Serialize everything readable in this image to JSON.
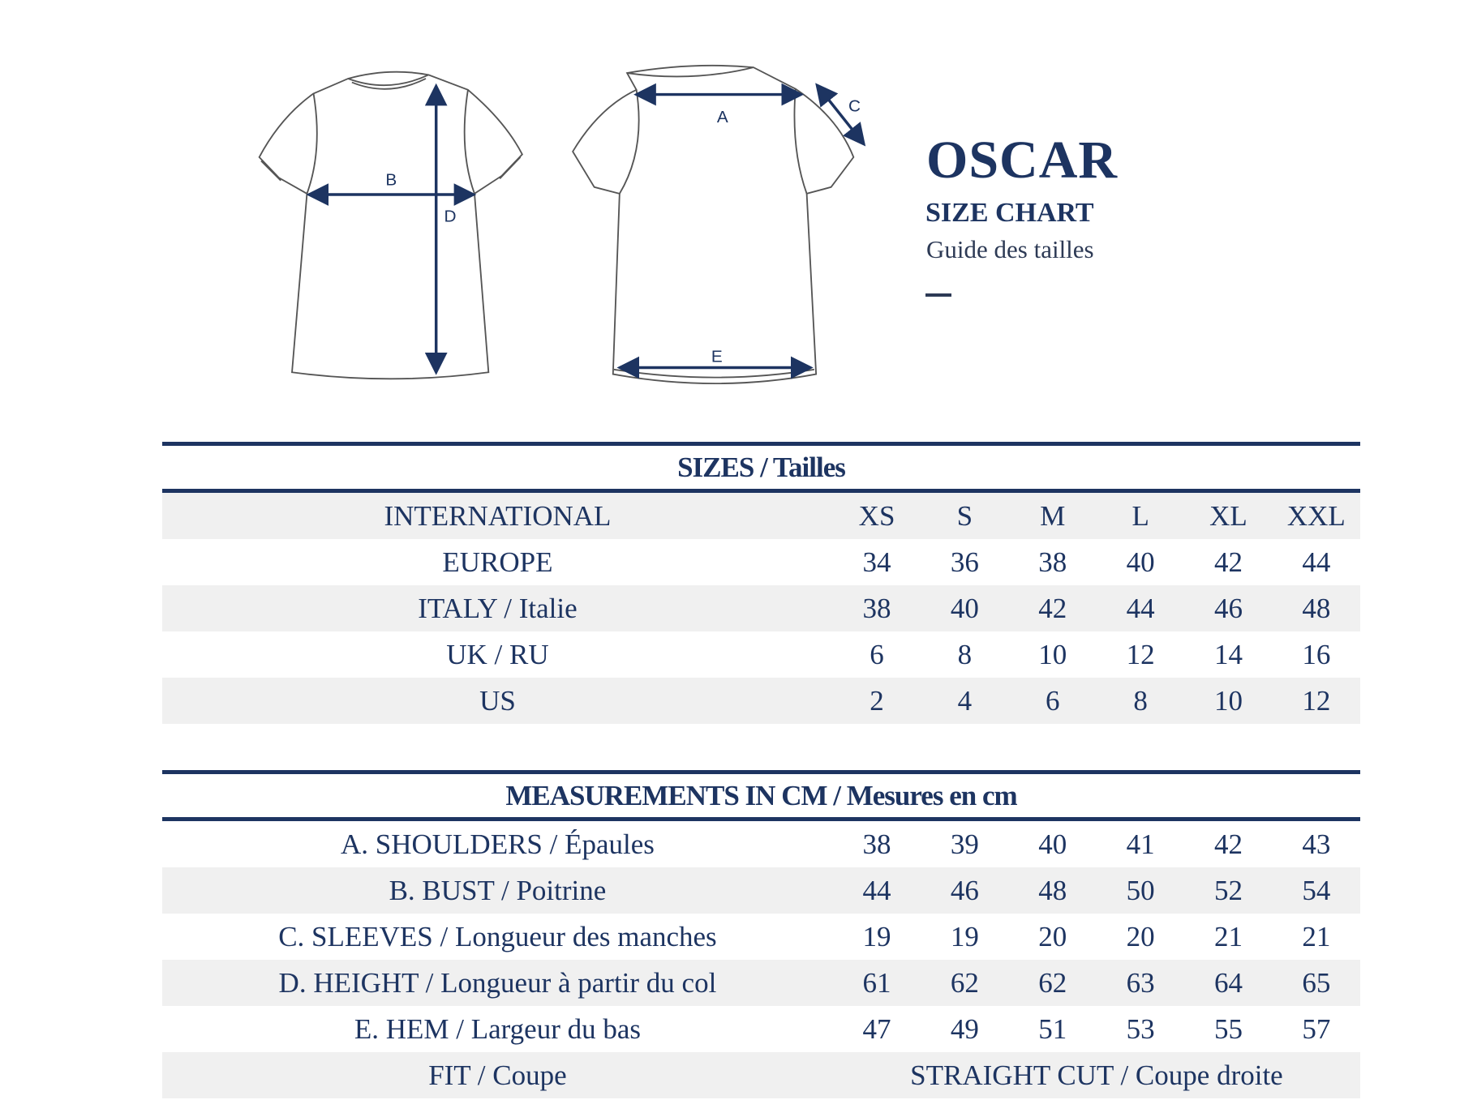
{
  "brand": {
    "name": "OSCAR",
    "subtitle": "SIZE CHART",
    "subtitle_fr": "Guide des tailles"
  },
  "diagram_labels": {
    "a": "A",
    "b": "B",
    "c": "C",
    "d": "D",
    "e": "E"
  },
  "sizes": {
    "title": "SIZES / Tailles",
    "rows": [
      {
        "label": "INTERNATIONAL",
        "values": [
          "XS",
          "S",
          "M",
          "L",
          "XL",
          "XXL"
        ]
      },
      {
        "label": "EUROPE",
        "values": [
          "34",
          "36",
          "38",
          "40",
          "42",
          "44"
        ]
      },
      {
        "label": "ITALY / Italie",
        "values": [
          "38",
          "40",
          "42",
          "44",
          "46",
          "48"
        ]
      },
      {
        "label": "UK / RU",
        "values": [
          "6",
          "8",
          "10",
          "12",
          "14",
          "16"
        ]
      },
      {
        "label": "US",
        "values": [
          "2",
          "4",
          "6",
          "8",
          "10",
          "12"
        ]
      }
    ]
  },
  "measurements": {
    "title": "MEASUREMENTS IN CM / Mesures en cm",
    "rows": [
      {
        "label": "A. SHOULDERS / Épaules",
        "values": [
          "38",
          "39",
          "40",
          "41",
          "42",
          "43"
        ]
      },
      {
        "label": "B. BUST / Poitrine",
        "values": [
          "44",
          "46",
          "48",
          "50",
          "52",
          "54"
        ]
      },
      {
        "label": "C. SLEEVES / Longueur des manches",
        "values": [
          "19",
          "19",
          "20",
          "20",
          "21",
          "21"
        ]
      },
      {
        "label": "D. HEIGHT / Longueur à partir du col",
        "values": [
          "61",
          "62",
          "62",
          "63",
          "64",
          "65"
        ]
      },
      {
        "label": "E. HEM / Largeur du bas",
        "values": [
          "47",
          "49",
          "51",
          "53",
          "55",
          "57"
        ]
      }
    ],
    "fit": {
      "label": "FIT / Coupe",
      "value": "STRAIGHT CUT / Coupe droite"
    }
  },
  "colors": {
    "navy": "#1d3461",
    "row_gray": "#f0f0f0"
  }
}
